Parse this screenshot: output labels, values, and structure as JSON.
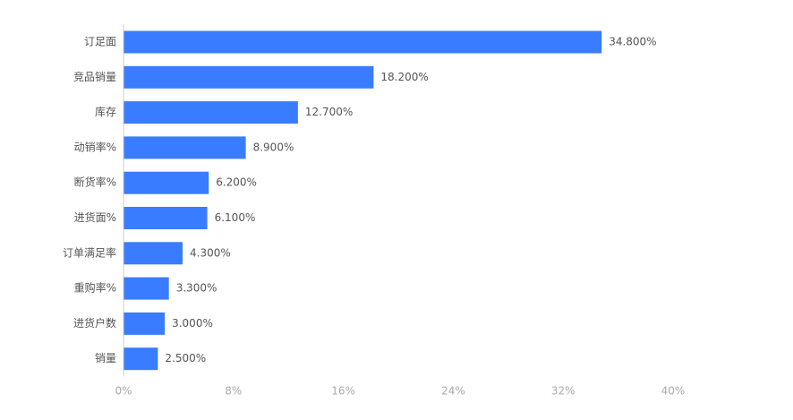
{
  "chart_data": {
    "type": "bar",
    "orientation": "horizontal",
    "categories": [
      "订足面",
      "竞品销量",
      "库存",
      "动销率%",
      "断货率%",
      "进货面%",
      "订单满足率",
      "重购率%",
      "进货户数",
      "销量"
    ],
    "values": [
      34.8,
      18.2,
      12.7,
      8.9,
      6.2,
      6.1,
      4.3,
      3.3,
      3.0,
      2.5
    ],
    "value_labels": [
      "34.800%",
      "18.200%",
      "12.700%",
      "8.900%",
      "6.200%",
      "6.100%",
      "4.300%",
      "3.300%",
      "3.000%",
      "2.500%"
    ],
    "x_ticks": [
      "0%",
      "8%",
      "16%",
      "24%",
      "32%",
      "40%"
    ],
    "xlim": [
      0,
      40
    ],
    "title": "",
    "xlabel": "",
    "ylabel": "",
    "grid": false,
    "legend": "none",
    "bar_color": "#3a7cff",
    "axis_label_color": "#555555",
    "tick_label_color": "#aaaaaa",
    "data_label_color": "#555555",
    "axis_line_color": "#cccccc"
  }
}
